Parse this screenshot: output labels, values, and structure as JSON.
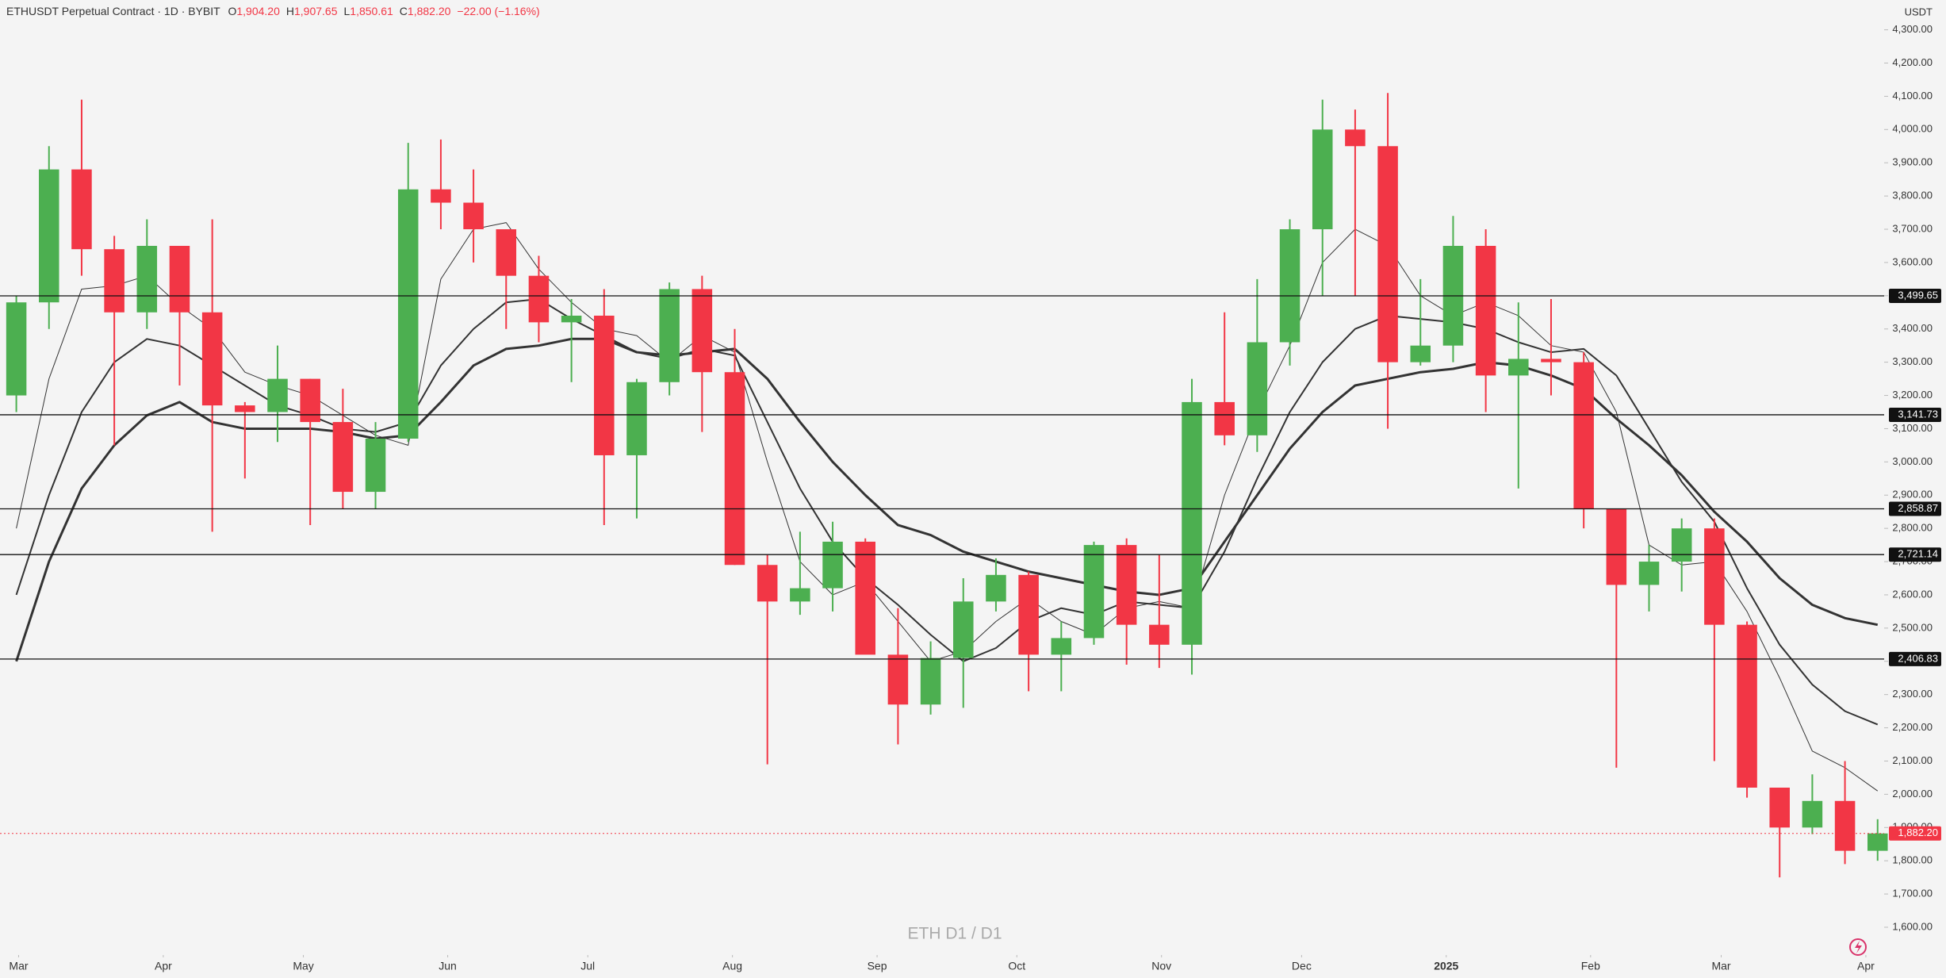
{
  "chart_data": {
    "type": "candlestick",
    "header": {
      "symbol": "ETHUSDT Perpetual Contract · 1D · BYBIT",
      "o": "O",
      "o_val": "1,904.20",
      "h": "H",
      "h_val": "1,907.65",
      "l": "L",
      "l_val": "1,850.61",
      "c": "C",
      "c_val": "1,882.20",
      "change": "−22.00 (−1.16%)"
    },
    "unit": "USDT",
    "watermark": "ETH D1 / D1",
    "up_color": "#4caf50",
    "down_color": "#f23645",
    "ohlc": [
      [
        3200,
        3500,
        3150,
        3480
      ],
      [
        3480,
        3950,
        3400,
        3880
      ],
      [
        3880,
        4090,
        3560,
        3640
      ],
      [
        3640,
        3680,
        3050,
        3450
      ],
      [
        3450,
        3730,
        3400,
        3650
      ],
      [
        3650,
        3650,
        3230,
        3450
      ],
      [
        3450,
        3730,
        2790,
        3170
      ],
      [
        3170,
        3180,
        2950,
        3150
      ],
      [
        3150,
        3350,
        3060,
        3250
      ],
      [
        3250,
        3250,
        2810,
        3120
      ],
      [
        3120,
        3220,
        2860,
        2910
      ],
      [
        2910,
        3120,
        2860,
        3070
      ],
      [
        3070,
        3960,
        3060,
        3820
      ],
      [
        3820,
        3970,
        3700,
        3780
      ],
      [
        3780,
        3880,
        3600,
        3700
      ],
      [
        3700,
        3700,
        3400,
        3560
      ],
      [
        3560,
        3620,
        3360,
        3420
      ],
      [
        3420,
        3490,
        3240,
        3440
      ],
      [
        3440,
        3520,
        2810,
        3020
      ],
      [
        3020,
        3250,
        2830,
        3240
      ],
      [
        3240,
        3540,
        3200,
        3520
      ],
      [
        3520,
        3560,
        3090,
        3270
      ],
      [
        3270,
        3400,
        2690,
        2690
      ],
      [
        2690,
        2720,
        2090,
        2580
      ],
      [
        2580,
        2790,
        2540,
        2620
      ],
      [
        2620,
        2820,
        2550,
        2760
      ],
      [
        2760,
        2770,
        2430,
        2420
      ],
      [
        2420,
        2560,
        2150,
        2270
      ],
      [
        2270,
        2460,
        2240,
        2410
      ],
      [
        2410,
        2650,
        2260,
        2580
      ],
      [
        2580,
        2710,
        2550,
        2660
      ],
      [
        2660,
        2670,
        2310,
        2420
      ],
      [
        2420,
        2520,
        2310,
        2470
      ],
      [
        2470,
        2760,
        2450,
        2750
      ],
      [
        2750,
        2770,
        2390,
        2510
      ],
      [
        2510,
        2720,
        2380,
        2450
      ],
      [
        2450,
        3250,
        2360,
        3180
      ],
      [
        3180,
        3450,
        3050,
        3080
      ],
      [
        3080,
        3550,
        3030,
        3360
      ],
      [
        3360,
        3730,
        3290,
        3700
      ],
      [
        3700,
        4090,
        3500,
        4000
      ],
      [
        4000,
        4060,
        3500,
        3950
      ],
      [
        3950,
        4110,
        3100,
        3300
      ],
      [
        3300,
        3550,
        3290,
        3350
      ],
      [
        3350,
        3740,
        3300,
        3650
      ],
      [
        3650,
        3700,
        3150,
        3260
      ],
      [
        3260,
        3480,
        2920,
        3310
      ],
      [
        3310,
        3490,
        3200,
        3300
      ],
      [
        3300,
        3330,
        2800,
        2860
      ],
      [
        2860,
        2860,
        2080,
        2630
      ],
      [
        2630,
        2750,
        2550,
        2700
      ],
      [
        2700,
        2830,
        2610,
        2800
      ],
      [
        2800,
        2830,
        2100,
        2510
      ],
      [
        2510,
        2520,
        1990,
        2020
      ],
      [
        2020,
        2020,
        1750,
        1900
      ],
      [
        1900,
        2060,
        1880,
        1980
      ],
      [
        1980,
        2100,
        1790,
        1830
      ],
      [
        1830,
        1925,
        1800,
        1882.2
      ]
    ],
    "series": [
      {
        "color": "#333333",
        "width": 1,
        "values": [
          2800,
          3250,
          3520,
          3530,
          3560,
          3470,
          3400,
          3270,
          3230,
          3200,
          3140,
          3080,
          3050,
          3550,
          3700,
          3720,
          3580,
          3480,
          3400,
          3380,
          3300,
          3380,
          3330,
          3000,
          2700,
          2600,
          2640,
          2520,
          2400,
          2430,
          2520,
          2590,
          2520,
          2480,
          2560,
          2580,
          2560,
          2900,
          3150,
          3350,
          3600,
          3700,
          3650,
          3500,
          3440,
          3480,
          3440,
          3350,
          3330,
          3150,
          2750,
          2690,
          2700,
          2550,
          2350,
          2130,
          2080,
          2010
        ]
      },
      {
        "color": "#333333",
        "width": 2,
        "values": [
          2600,
          2900,
          3150,
          3300,
          3370,
          3350,
          3290,
          3230,
          3170,
          3140,
          3100,
          3090,
          3120,
          3290,
          3400,
          3480,
          3490,
          3430,
          3380,
          3330,
          3310,
          3340,
          3320,
          3120,
          2920,
          2760,
          2650,
          2570,
          2480,
          2400,
          2440,
          2520,
          2560,
          2540,
          2580,
          2570,
          2560,
          2730,
          2950,
          3150,
          3300,
          3400,
          3440,
          3430,
          3420,
          3400,
          3360,
          3330,
          3340,
          3260,
          3100,
          2940,
          2820,
          2620,
          2450,
          2330,
          2250,
          2210
        ]
      },
      {
        "color": "#333333",
        "width": 3,
        "values": [
          2400,
          2700,
          2920,
          3050,
          3140,
          3180,
          3120,
          3100,
          3100,
          3100,
          3090,
          3070,
          3080,
          3180,
          3290,
          3340,
          3350,
          3370,
          3370,
          3330,
          3320,
          3330,
          3340,
          3250,
          3120,
          3000,
          2900,
          2810,
          2780,
          2730,
          2700,
          2670,
          2650,
          2630,
          2610,
          2600,
          2620,
          2760,
          2900,
          3040,
          3150,
          3230,
          3250,
          3270,
          3280,
          3300,
          3290,
          3260,
          3220,
          3130,
          3050,
          2960,
          2850,
          2760,
          2650,
          2570,
          2530,
          2510
        ]
      }
    ],
    "levels": [
      {
        "value": 3499.65,
        "label": "3,499.65"
      },
      {
        "value": 3141.73,
        "label": "3,141.73"
      },
      {
        "value": 2858.87,
        "label": "2,858.87"
      },
      {
        "value": 2721.14,
        "label": "2,721.14"
      },
      {
        "value": 2406.83,
        "label": "2,406.83"
      }
    ],
    "last_price": {
      "value": 1882.2,
      "label": "1,882.20"
    },
    "xlim": [
      0,
      57.7
    ],
    "xticks": [
      {
        "value": 0.57,
        "label": "Mar"
      },
      {
        "value": 5,
        "label": "Apr"
      },
      {
        "value": 9.29,
        "label": "May"
      },
      {
        "value": 13.71,
        "label": "Jun"
      },
      {
        "value": 18,
        "label": "Jul"
      },
      {
        "value": 22.43,
        "label": "Aug"
      },
      {
        "value": 26.86,
        "label": "Sep"
      },
      {
        "value": 31.14,
        "label": "Oct"
      },
      {
        "value": 35.57,
        "label": "Nov"
      },
      {
        "value": 39.86,
        "label": "Dec"
      },
      {
        "value": 44.29,
        "label": "2025"
      },
      {
        "value": 48.71,
        "label": "Feb"
      },
      {
        "value": 52.71,
        "label": "Mar"
      },
      {
        "value": 57.14,
        "label": "Apr"
      }
    ],
    "ylim": [
      1600,
      4300
    ],
    "yticks": [
      {
        "value": 1600,
        "label": "1,600.00"
      },
      {
        "value": 1700,
        "label": "1,700.00"
      },
      {
        "value": 1800,
        "label": "1,800.00"
      },
      {
        "value": 1900,
        "label": "1,900.00"
      },
      {
        "value": 2000,
        "label": "2,000.00"
      },
      {
        "value": 2100,
        "label": "2,100.00"
      },
      {
        "value": 2200,
        "label": "2,200.00"
      },
      {
        "value": 2300,
        "label": "2,300.00"
      },
      {
        "value": 2400,
        "label": "2,400.00"
      },
      {
        "value": 2500,
        "label": "2,500.00"
      },
      {
        "value": 2600,
        "label": "2,600.00"
      },
      {
        "value": 2700,
        "label": "2,700.00"
      },
      {
        "value": 2800,
        "label": "2,800.00"
      },
      {
        "value": 2900,
        "label": "2,900.00"
      },
      {
        "value": 3000,
        "label": "3,000.00"
      },
      {
        "value": 3100,
        "label": "3,100.00"
      },
      {
        "value": 3200,
        "label": "3,200.00"
      },
      {
        "value": 3300,
        "label": "3,300.00"
      },
      {
        "value": 3400,
        "label": "3,400.00"
      },
      {
        "value": 3500,
        "label": "3,500.00"
      },
      {
        "value": 3600,
        "label": "3,600.00"
      },
      {
        "value": 3700,
        "label": "3,700.00"
      },
      {
        "value": 3800,
        "label": "3,800.00"
      },
      {
        "value": 3900,
        "label": "3,900.00"
      },
      {
        "value": 4000,
        "label": "4,000.00"
      },
      {
        "value": 4100,
        "label": "4,100.00"
      },
      {
        "value": 4200,
        "label": "4,200.00"
      },
      {
        "value": 4300,
        "label": "4,300.00"
      }
    ]
  }
}
